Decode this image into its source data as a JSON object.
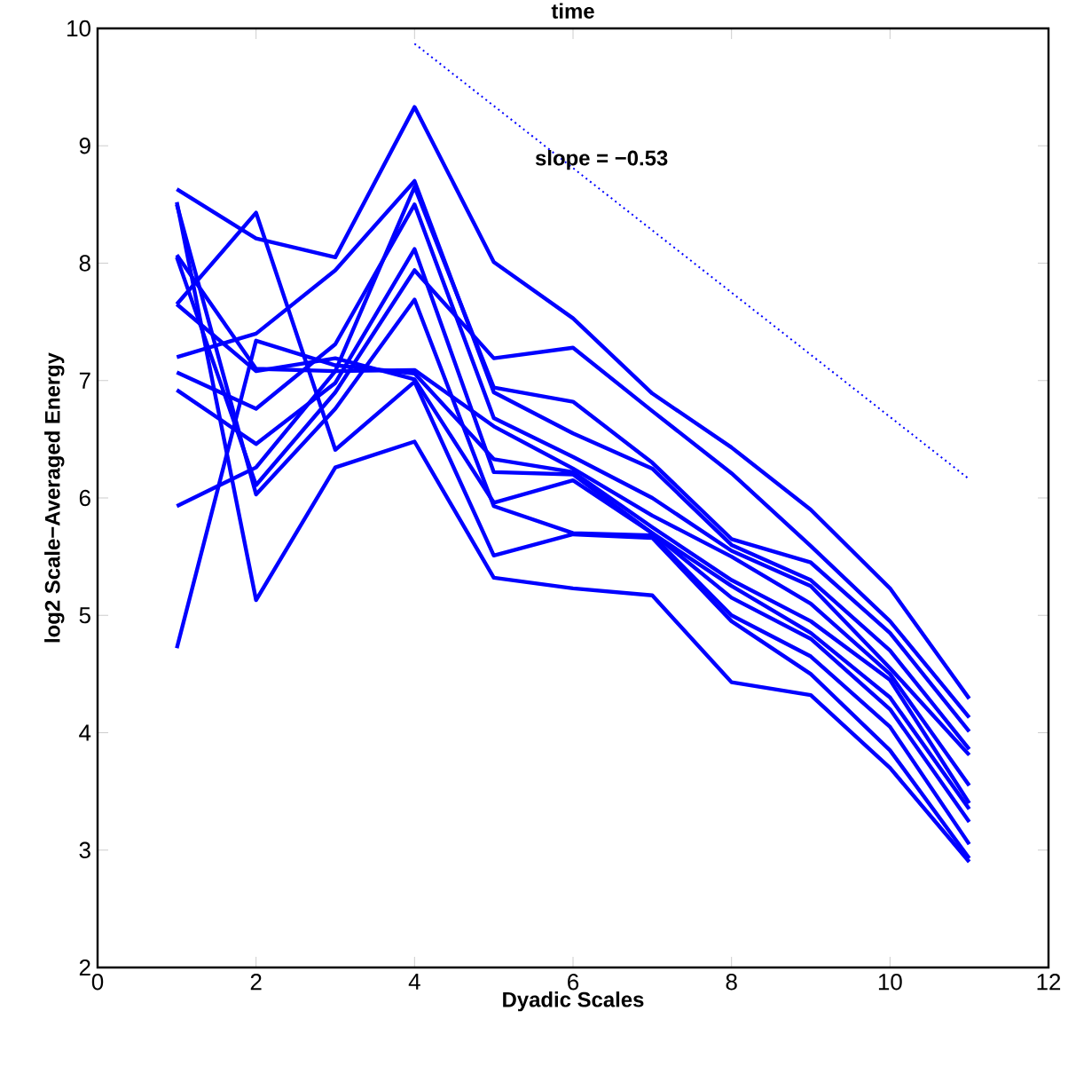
{
  "chart_data": {
    "type": "line",
    "title": "time",
    "xlabel": "Dyadic Scales",
    "ylabel": "log2 Scale−Averaged Energy",
    "annotations": [
      "slope = −0.53"
    ],
    "x": [
      1,
      2,
      3,
      4,
      5,
      6,
      7,
      8,
      9,
      10,
      11
    ],
    "xlim": [
      0,
      12
    ],
    "ylim": [
      2,
      10
    ],
    "xticks": [
      0,
      2,
      4,
      6,
      8,
      10,
      12
    ],
    "yticks": [
      2,
      3,
      4,
      5,
      6,
      7,
      8,
      9,
      10
    ],
    "line_style": "solid",
    "series": [
      {
        "color": "#0000ff",
        "values": [
          8.63,
          8.21,
          8.05,
          9.33,
          8.01,
          7.53,
          6.89,
          6.43,
          5.9,
          5.23,
          4.29
        ]
      },
      {
        "color": "#0000ff",
        "values": [
          8.05,
          6.11,
          6.9,
          7.94,
          7.19,
          7.28,
          6.74,
          6.21,
          5.59,
          4.95,
          4.13
        ]
      },
      {
        "color": "#0000ff",
        "values": [
          5.93,
          6.26,
          7.08,
          8.65,
          6.94,
          6.82,
          6.3,
          5.65,
          5.45,
          4.85,
          4.01
        ]
      },
      {
        "color": "#0000ff",
        "values": [
          7.2,
          7.4,
          7.94,
          8.7,
          6.9,
          6.55,
          6.25,
          5.6,
          5.3,
          4.7,
          3.86
        ]
      },
      {
        "color": "#0000ff",
        "values": [
          7.07,
          6.76,
          7.31,
          8.5,
          6.68,
          6.35,
          6.0,
          5.55,
          5.25,
          4.55,
          3.81
        ]
      },
      {
        "color": "#0000ff",
        "values": [
          8.07,
          7.1,
          7.08,
          7.09,
          6.61,
          6.25,
          5.85,
          5.5,
          5.1,
          4.5,
          3.55
        ]
      },
      {
        "color": "#0000ff",
        "values": [
          4.72,
          7.34,
          7.13,
          7.06,
          6.33,
          6.22,
          5.75,
          5.3,
          4.95,
          4.45,
          3.4
        ]
      },
      {
        "color": "#0000ff",
        "values": [
          6.92,
          6.46,
          6.98,
          8.12,
          6.22,
          6.2,
          5.7,
          5.25,
          4.85,
          4.3,
          3.35
        ]
      },
      {
        "color": "#0000ff",
        "values": [
          7.65,
          7.08,
          7.19,
          7.01,
          5.96,
          6.15,
          5.7,
          5.15,
          4.8,
          4.2,
          3.24
        ]
      },
      {
        "color": "#0000ff",
        "values": [
          8.5,
          6.03,
          6.76,
          7.69,
          5.93,
          5.7,
          5.68,
          5.0,
          4.65,
          4.05,
          3.05
        ]
      },
      {
        "color": "#0000ff",
        "values": [
          7.65,
          8.43,
          6.41,
          6.99,
          5.51,
          5.69,
          5.66,
          4.95,
          4.5,
          3.85,
          2.93
        ]
      },
      {
        "color": "#0000ff",
        "values": [
          8.52,
          5.13,
          6.26,
          6.48,
          5.32,
          5.23,
          5.17,
          4.43,
          4.32,
          3.7,
          2.9
        ]
      },
      {
        "type": "line",
        "color": "#0000ff",
        "line_style": "dotted",
        "x": [
          4,
          11
        ],
        "values": [
          9.87,
          6.16
        ]
      }
    ]
  }
}
